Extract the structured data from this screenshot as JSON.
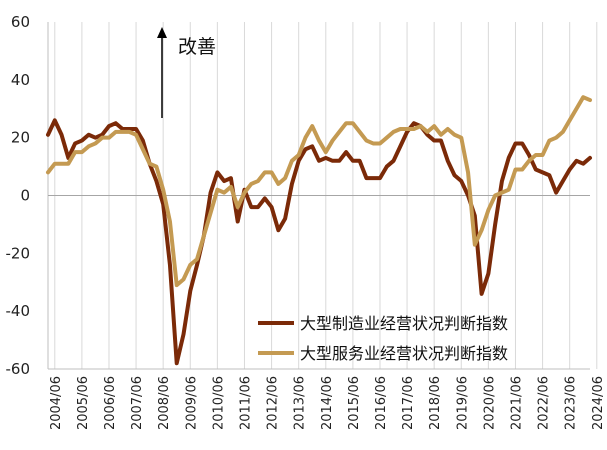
{
  "chart_data": {
    "type": "line",
    "title": "",
    "xlabel": "",
    "ylabel": "",
    "ylim": [
      -60,
      60
    ],
    "yticks": [
      -60,
      -40,
      -20,
      0,
      20,
      40,
      60
    ],
    "ytick_labels": [
      "-60",
      "-40",
      "-20",
      "0",
      "20",
      "40",
      "60"
    ],
    "xtick_labels": [
      "2004/06",
      "2005/06",
      "2006/06",
      "2007/06",
      "2008/06",
      "2009/06",
      "2010/06",
      "2011/06",
      "2012/06",
      "2013/06",
      "2014/06",
      "2015/06",
      "2016/06",
      "2017/06",
      "2018/06",
      "2019/06",
      "2020/06",
      "2021/06",
      "2022/06",
      "2023/06",
      "2024/06"
    ],
    "x_start": "2004/03",
    "x_end": "2024/06",
    "x_step": "quarterly",
    "grid": {
      "x": true,
      "y": false
    },
    "zero_line": true,
    "annotation": {
      "text": "改善",
      "arrow": "up"
    },
    "legend_position": "bottom-right",
    "series": [
      {
        "name": "大型制造业经营状况判断指数",
        "color": "#7b2a08",
        "values": [
          21,
          26,
          21,
          13,
          18,
          19,
          21,
          20,
          21,
          24,
          25,
          23,
          23,
          23,
          19,
          11,
          5,
          -3,
          -24,
          -58,
          -48,
          -33,
          -24,
          -14,
          1,
          8,
          5,
          6,
          -9,
          2,
          -4,
          -4,
          -1,
          -4,
          -12,
          -8,
          4,
          12,
          16,
          17,
          12,
          13,
          12,
          12,
          15,
          12,
          12,
          6,
          6,
          6,
          10,
          12,
          17,
          22,
          25,
          24,
          21,
          19,
          19,
          12,
          7,
          5,
          0,
          -7,
          -34,
          -27,
          -10,
          5,
          13,
          18,
          18,
          14,
          9,
          8,
          7,
          1,
          5,
          9,
          12,
          11,
          13
        ]
      },
      {
        "name": "大型服务业经营状况判断指数",
        "color": "#c49a52",
        "values": [
          8,
          11,
          11,
          11,
          15,
          15,
          17,
          18,
          20,
          20,
          22,
          22,
          22,
          21,
          16,
          11,
          10,
          2,
          -9,
          -31,
          -29,
          -24,
          -22,
          -14,
          -6,
          2,
          1,
          3,
          -4,
          1,
          4,
          5,
          8,
          8,
          4,
          6,
          12,
          14,
          20,
          24,
          19,
          15,
          19,
          22,
          25,
          25,
          22,
          19,
          18,
          18,
          20,
          22,
          23,
          23,
          23,
          24,
          22,
          24,
          21,
          23,
          21,
          20,
          8,
          -17,
          -12,
          -5,
          0,
          1,
          2,
          9,
          9,
          12,
          14,
          14,
          19,
          20,
          22,
          26,
          30,
          34,
          33
        ]
      }
    ]
  }
}
